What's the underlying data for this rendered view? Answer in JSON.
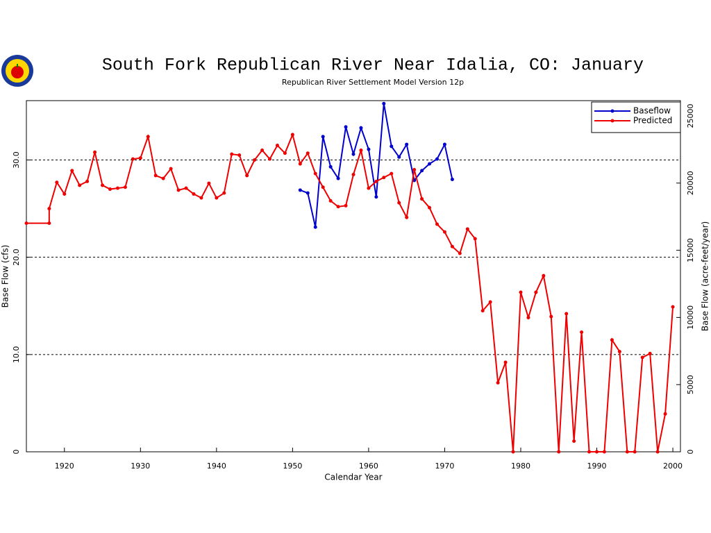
{
  "chart_data": {
    "type": "line",
    "title": "South Fork Republican River Near Idalia, CO: January",
    "subtitle": "Republican River Settlement Model Version 12p",
    "x_label": "Calendar Year",
    "y_label": "Base Flow (cfs)",
    "y2_label": "Base Flow (acre-feet/year)",
    "xlim": [
      1915,
      2001
    ],
    "xticks": [
      1920,
      1930,
      1940,
      1950,
      1960,
      1970,
      1980,
      1990,
      2000
    ],
    "ylim": [
      0,
      36.1
    ],
    "yticks": [
      0,
      {
        "value": 10,
        "label": "10.0"
      },
      {
        "value": 20,
        "label": "20.0"
      },
      {
        "value": 30,
        "label": "30.0"
      }
    ],
    "y2lim": [
      0,
      26136
    ],
    "y2ticks": [
      0,
      5000,
      10000,
      15000,
      20000,
      25000
    ],
    "grid": true,
    "legend": "upper right",
    "series": [
      {
        "name": "Baseflow",
        "color": "#0000cc",
        "x": [
          1951,
          1952,
          1953,
          1954,
          1955,
          1956,
          1957,
          1958,
          1959,
          1960,
          1961,
          1962,
          1963,
          1964,
          1965,
          1966,
          1967,
          1968,
          1969,
          1970,
          1971
        ],
        "values": [
          26.9,
          26.6,
          23.1,
          32.4,
          29.3,
          28.1,
          33.4,
          30.6,
          33.3,
          31.1,
          26.2,
          35.8,
          31.4,
          30.3,
          31.6,
          27.9,
          28.9,
          29.6,
          30.1,
          31.6,
          28.0
        ]
      },
      {
        "name": "Predicted",
        "color": "#ee0000",
        "x": [
          1915,
          1918,
          1918,
          1919,
          1920,
          1921,
          1922,
          1923,
          1924,
          1925,
          1926,
          1927,
          1928,
          1929,
          1930,
          1931,
          1932,
          1933,
          1934,
          1935,
          1936,
          1937,
          1938,
          1939,
          1940,
          1941,
          1942,
          1943,
          1944,
          1945,
          1946,
          1947,
          1948,
          1949,
          1950,
          1951,
          1952,
          1953,
          1954,
          1955,
          1956,
          1957,
          1958,
          1959,
          1960,
          1961,
          1962,
          1963,
          1964,
          1965,
          1966,
          1967,
          1968,
          1969,
          1970,
          1971,
          1972,
          1973,
          1974,
          1975,
          1976,
          1977,
          1978,
          1979,
          1980,
          1981,
          1982,
          1983,
          1984,
          1985,
          1986,
          1987,
          1988,
          1989,
          1990,
          1991,
          1992,
          1993,
          1994,
          1995,
          1996,
          1997,
          1998,
          1999,
          2000
        ],
        "values": [
          23.5,
          23.5,
          25.0,
          27.7,
          26.5,
          28.9,
          27.4,
          27.8,
          30.8,
          27.4,
          27.0,
          27.1,
          27.2,
          30.1,
          30.2,
          32.4,
          28.4,
          28.1,
          29.1,
          26.9,
          27.1,
          26.5,
          26.1,
          27.6,
          26.1,
          26.6,
          30.6,
          30.5,
          28.4,
          30.0,
          31.0,
          30.1,
          31.5,
          30.7,
          32.6,
          29.6,
          30.7,
          28.6,
          27.2,
          25.8,
          25.2,
          25.3,
          28.5,
          31.0,
          27.1,
          27.8,
          28.2,
          28.6,
          25.6,
          24.1,
          29.0,
          26.0,
          25.1,
          23.4,
          22.6,
          21.1,
          20.4,
          22.9,
          21.9,
          14.5,
          15.4,
          7.1,
          9.2,
          0,
          16.4,
          13.8,
          16.4,
          18.1,
          13.9,
          0,
          14.2,
          1.1,
          12.3,
          0,
          0,
          0,
          11.5,
          10.3,
          0,
          0,
          9.7,
          10.1,
          0,
          3.9,
          14.9
        ]
      }
    ]
  }
}
